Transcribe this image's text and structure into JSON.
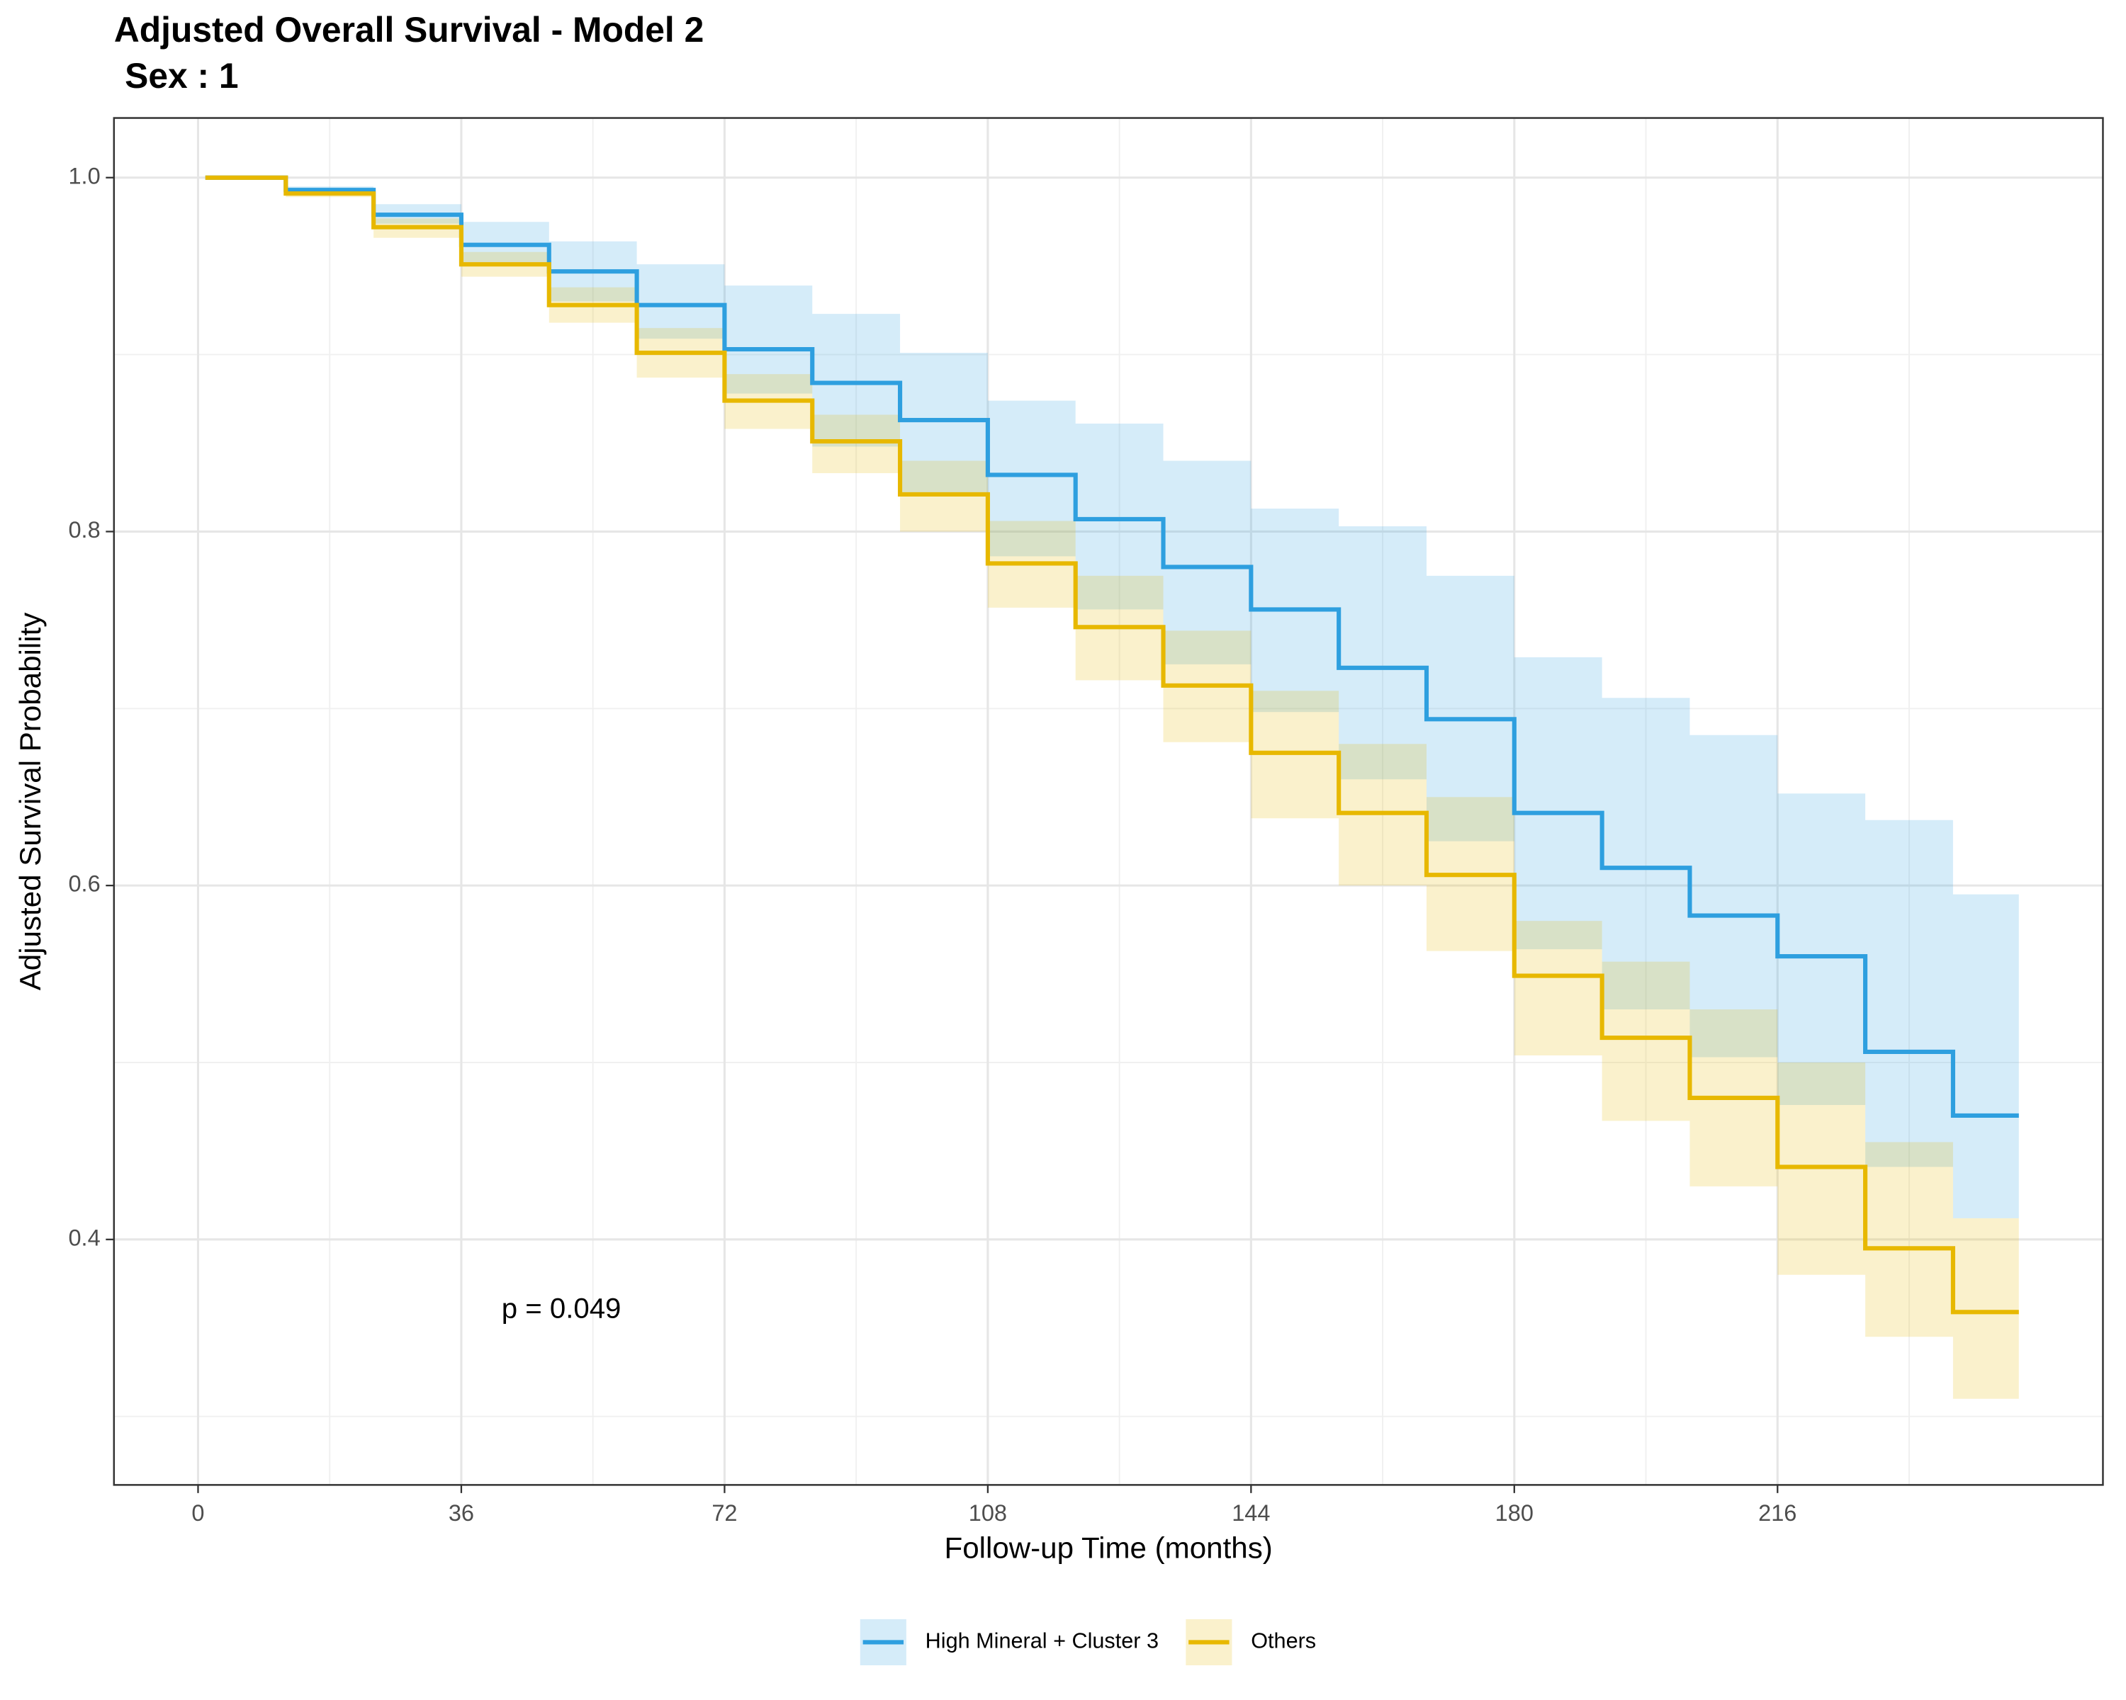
{
  "chart_data": {
    "type": "survival-step",
    "title": "Adjusted Overall Survival - Model 2",
    "subtitle": "Sex : 1",
    "x_label": "Follow-up Time (months)",
    "y_label": "Adjusted Survival Probability",
    "annotation": "p = 0.049",
    "annotation_position": [
      41.5,
      0.36
    ],
    "x": [
      1,
      12,
      24,
      36,
      48,
      60,
      72,
      84,
      96,
      108,
      120,
      132,
      144,
      156,
      168,
      180,
      192,
      204,
      216,
      228,
      240,
      249
    ],
    "series": [
      {
        "name": "High Mineral + Cluster 3",
        "color": "#2E9FDF",
        "values": [
          1.0,
          0.993,
          0.979,
          0.962,
          0.947,
          0.928,
          0.903,
          0.884,
          0.863,
          0.832,
          0.807,
          0.78,
          0.756,
          0.723,
          0.694,
          0.641,
          0.61,
          0.583,
          0.56,
          0.506,
          0.47,
          0.47
        ],
        "upper": [
          1.0,
          0.995,
          0.985,
          0.975,
          0.964,
          0.951,
          0.939,
          0.923,
          0.901,
          0.874,
          0.861,
          0.84,
          0.813,
          0.803,
          0.775,
          0.729,
          0.706,
          0.685,
          0.652,
          0.637,
          0.595,
          0.595
        ],
        "lower": [
          1.0,
          0.992,
          0.974,
          0.951,
          0.93,
          0.909,
          0.878,
          0.848,
          0.821,
          0.786,
          0.756,
          0.725,
          0.698,
          0.66,
          0.625,
          0.564,
          0.53,
          0.503,
          0.476,
          0.441,
          0.412,
          0.412
        ]
      },
      {
        "name": "Others",
        "color": "#E7B800",
        "values": [
          1.0,
          0.991,
          0.972,
          0.951,
          0.928,
          0.901,
          0.874,
          0.851,
          0.821,
          0.782,
          0.746,
          0.713,
          0.675,
          0.641,
          0.606,
          0.549,
          0.514,
          0.48,
          0.441,
          0.395,
          0.359,
          0.359
        ],
        "upper": [
          1.0,
          0.993,
          0.977,
          0.958,
          0.938,
          0.915,
          0.889,
          0.866,
          0.84,
          0.806,
          0.775,
          0.744,
          0.71,
          0.68,
          0.65,
          0.58,
          0.557,
          0.53,
          0.5,
          0.455,
          0.412,
          0.412
        ],
        "lower": [
          1.0,
          0.989,
          0.966,
          0.944,
          0.918,
          0.887,
          0.858,
          0.833,
          0.8,
          0.757,
          0.716,
          0.681,
          0.638,
          0.6,
          0.563,
          0.504,
          0.467,
          0.43,
          0.38,
          0.345,
          0.31,
          0.31
        ]
      }
    ],
    "xlim": [
      -11.5,
      260.5
    ],
    "ylim": [
      0.2613,
      1.0337
    ],
    "xticks": [
      0,
      36,
      72,
      108,
      144,
      180,
      216
    ],
    "yticks": [
      0.4,
      0.6,
      0.8,
      {
        "value": 1,
        "label": "1.0"
      }
    ],
    "minor_xticks": [
      18,
      54,
      90,
      126,
      162,
      198,
      234
    ],
    "minor_yticks": [
      0.3,
      0.5,
      0.7,
      0.9
    ],
    "band_opacity": 0.2,
    "grid": true,
    "legend_position": "bottom"
  }
}
